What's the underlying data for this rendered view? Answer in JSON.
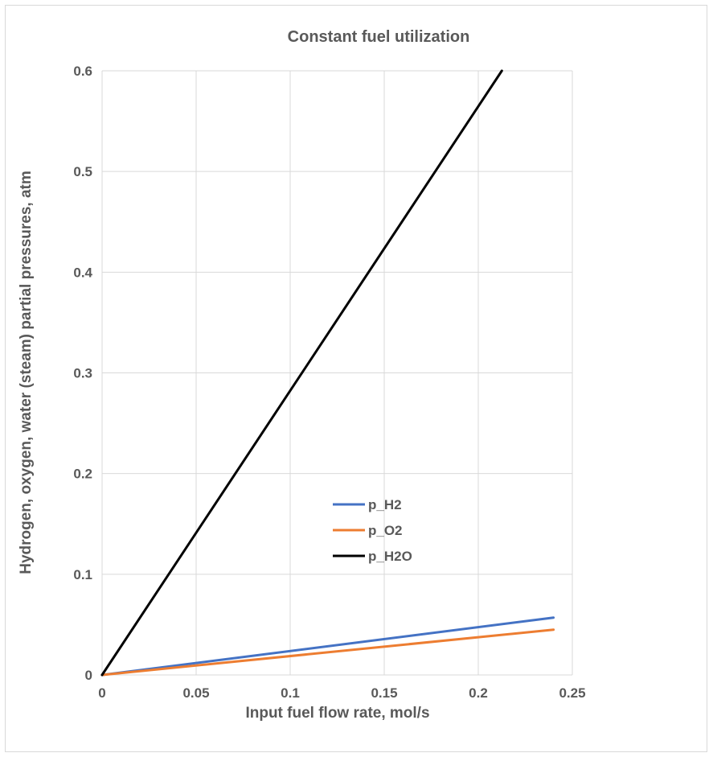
{
  "chart_data": {
    "type": "line",
    "title": "Constant fuel utilization",
    "xlabel": "Input fuel flow rate, mol/s",
    "ylabel": "Hydrogen, oxygen, water (steam) partial pressures, atm",
    "xlim": [
      0,
      0.25
    ],
    "ylim": [
      0,
      0.6
    ],
    "x_ticks": [
      "0",
      "0.05",
      "0.1",
      "0.15",
      "0.2",
      "0.25"
    ],
    "y_ticks": [
      "0",
      "0.1",
      "0.2",
      "0.3",
      "0.4",
      "0.5",
      "0.6"
    ],
    "grid": true,
    "legend_position": "center",
    "series": [
      {
        "name": "p_H2",
        "color": "#4472C4",
        "x": [
          0,
          0.24
        ],
        "y": [
          0,
          0.057
        ]
      },
      {
        "name": "p_O2",
        "color": "#ED7D31",
        "x": [
          0,
          0.24
        ],
        "y": [
          0,
          0.045
        ]
      },
      {
        "name": "p_H2O",
        "color": "#000000",
        "x": [
          0,
          0.2125
        ],
        "y": [
          0,
          0.6
        ]
      }
    ]
  }
}
